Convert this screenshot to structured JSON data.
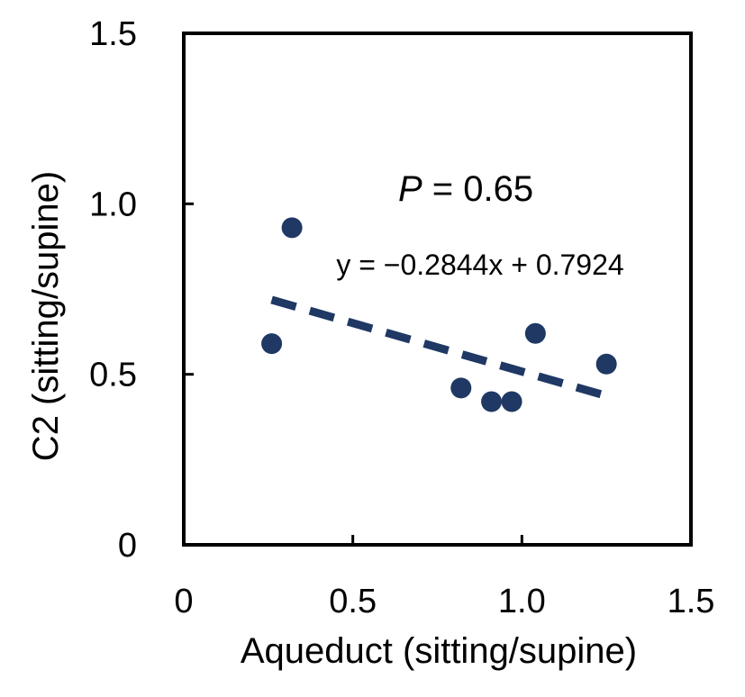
{
  "chart_data": {
    "type": "scatter",
    "title": "",
    "xlabel": "Aqueduct (sitting/supine)",
    "ylabel": "C2 (sitting/supine)",
    "xlim": [
      0,
      1.5
    ],
    "ylim": [
      0,
      1.5
    ],
    "x_ticks": [
      0,
      0.5,
      1.0,
      1.5
    ],
    "y_ticks": [
      0,
      0.5,
      1.0,
      1.5
    ],
    "x_tick_labels": [
      "0",
      "0.5",
      "1.0",
      "1.5"
    ],
    "y_tick_labels": [
      "0",
      "0.5",
      "1.0",
      "1.5"
    ],
    "grid": false,
    "legend": "none",
    "series": [
      {
        "points": [
          {
            "x": 0.26,
            "y": 0.59
          },
          {
            "x": 0.32,
            "y": 0.93
          },
          {
            "x": 0.82,
            "y": 0.46
          },
          {
            "x": 0.91,
            "y": 0.42
          },
          {
            "x": 0.97,
            "y": 0.42
          },
          {
            "x": 1.04,
            "y": 0.62
          },
          {
            "x": 1.25,
            "y": 0.53
          }
        ],
        "color": "#1f3864"
      }
    ],
    "trendline": {
      "slope": -0.2844,
      "intercept": 0.7924,
      "x_range": [
        0.26,
        1.25
      ],
      "style": "dashed",
      "color": "#1f3864"
    },
    "annotations": {
      "p_label": "P",
      "p_rest": " = 0.65",
      "equation": "y = −0.2844x + 0.7924"
    }
  }
}
